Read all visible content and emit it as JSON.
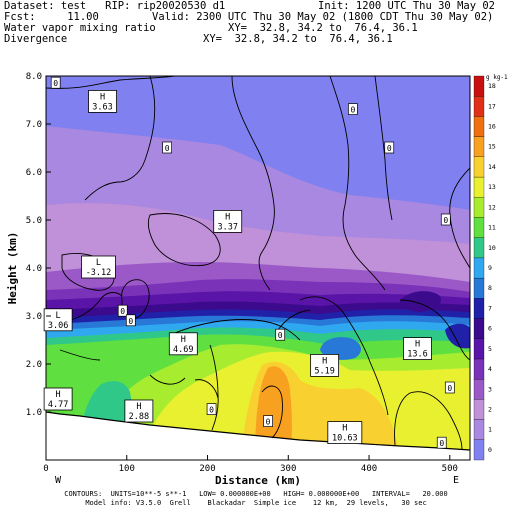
{
  "header": {
    "dataset_line": "Dataset: test   RIP: rip20020530 d1",
    "init_line": "Init: 1200 UTC Thu 30 May 02",
    "fcst_line": "Fcst:     11.00",
    "valid_line": "Valid: 2300 UTC Thu 30 May 02 (1800 CDT Thu 30 May 02)",
    "field1_line": "Water vapor mixing ratio",
    "xy1_line": "XY=  32.8, 34.2 to  76.4, 36.1",
    "field2_line": "Divergence",
    "xy2_line": "XY=  32.8, 34.2 to  76.4, 36.1"
  },
  "footer": {
    "contours_line": "CONTOURS:  UNITS=10**-5 s**-1   LOW= 0.000000E+00   HIGH= 0.000000E+00   INTERVAL=   20.000",
    "model_line": "Model info: V3.5.0  Grell    Blackadar  Simple ice    12 km,  29 levels,   30 sec"
  },
  "chart_data": {
    "type": "heatmap",
    "xlabel": "Distance (km)",
    "ylabel": "Height (km)",
    "x_ticks": [
      0,
      100,
      200,
      300,
      400,
      500
    ],
    "xlim": [
      0,
      525
    ],
    "y_ticks": [
      1.0,
      2.0,
      3.0,
      4.0,
      5.0,
      6.0,
      7.0,
      8.0
    ],
    "y_tick_labels": [
      "1.0",
      "2.0",
      "3.0",
      "4.0",
      "5.0",
      "6.0",
      "7.0",
      "8.0"
    ],
    "ylim": [
      0.0,
      8.0
    ],
    "x_end_labels": [
      "W",
      "E"
    ],
    "colorbar": {
      "unit_label": "g kg-1",
      "levels": [
        "0",
        "1",
        "2",
        "3",
        "4",
        "5",
        "6",
        "7",
        "8",
        "9",
        "10",
        "11",
        "12",
        "13",
        "14",
        "15",
        "16",
        "17",
        "18"
      ],
      "colors": [
        "#8080f0",
        "#a888e0",
        "#c090d8",
        "#9b59c8",
        "#7a33b8",
        "#5a14a8",
        "#3c0a8c",
        "#2020a8",
        "#2878d8",
        "#30a8f0",
        "#30c888",
        "#60e040",
        "#a8ec30",
        "#e8f030",
        "#f8d030",
        "#f8a020",
        "#f07010",
        "#e03018",
        "#c81010"
      ]
    },
    "extremes": [
      {
        "kind": "H",
        "value": "3.63",
        "x": 70,
        "y": 7.45
      },
      {
        "kind": "H",
        "value": "3.37",
        "x": 225,
        "y": 4.95
      },
      {
        "kind": "L",
        "value": "-3.12",
        "x": 65,
        "y": 4.0
      },
      {
        "kind": "L",
        "value": "3.06",
        "x": 15,
        "y": 2.9
      },
      {
        "kind": "H",
        "value": "4.69",
        "x": 170,
        "y": 2.4
      },
      {
        "kind": "H",
        "value": "5.19",
        "x": 345,
        "y": 1.95
      },
      {
        "kind": "H",
        "value": "13.6",
        "x": 460,
        "y": 2.3
      },
      {
        "kind": "H",
        "value": "4.77",
        "x": 15,
        "y": 1.25
      },
      {
        "kind": "H",
        "value": "2.88",
        "x": 115,
        "y": 1.0
      },
      {
        "kind": "H",
        "value": "10.63",
        "x": 370,
        "y": 0.55
      }
    ],
    "zero_labels": [
      {
        "x": 12,
        "y": 7.85
      },
      {
        "x": 380,
        "y": 7.3
      },
      {
        "x": 150,
        "y": 6.5
      },
      {
        "x": 425,
        "y": 6.5
      },
      {
        "x": 495,
        "y": 5.0
      },
      {
        "x": 95,
        "y": 3.1
      },
      {
        "x": 105,
        "y": 2.9
      },
      {
        "x": 290,
        "y": 2.6
      },
      {
        "x": 205,
        "y": 1.05
      },
      {
        "x": 275,
        "y": 0.8
      },
      {
        "x": 500,
        "y": 1.5
      },
      {
        "x": 490,
        "y": 0.35
      }
    ]
  }
}
